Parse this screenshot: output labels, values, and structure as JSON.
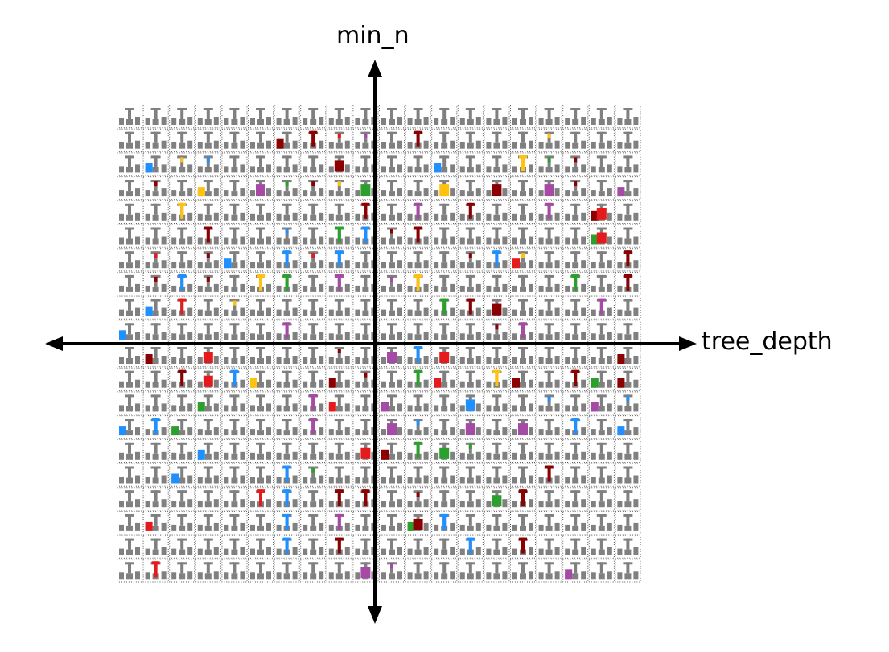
{
  "axes": {
    "x_label": "tree_depth",
    "y_label": "min_n"
  },
  "grid": {
    "rows": 20,
    "cols": 20
  },
  "colors": {
    "base": "#808080",
    "border": "#555555",
    "red": "#e41a1c",
    "darkred": "#8b0000",
    "blue": "#1e90ff",
    "green": "#2ca02c",
    "yellow": "#ffc20e",
    "purple": "#a54aa5",
    "axis": "#000000"
  },
  "highlights": [
    [
      1,
      7,
      "darkred",
      "tall"
    ],
    [
      1,
      6,
      "darkred",
      "block"
    ],
    [
      1,
      8,
      "red",
      "small"
    ],
    [
      1,
      9,
      "purple",
      "small"
    ],
    [
      1,
      11,
      "darkred",
      "tall"
    ],
    [
      1,
      16,
      "yellow",
      "small"
    ],
    [
      2,
      2,
      "yellow",
      "small"
    ],
    [
      2,
      1,
      "blue",
      "block"
    ],
    [
      2,
      3,
      "blue",
      "small"
    ],
    [
      2,
      8,
      "darkred",
      "wide"
    ],
    [
      2,
      12,
      "blue",
      "block"
    ],
    [
      2,
      15,
      "yellow",
      "tall"
    ],
    [
      2,
      16,
      "green",
      "small"
    ],
    [
      2,
      17,
      "darkred",
      "small"
    ],
    [
      3,
      1,
      "darkred",
      "small"
    ],
    [
      3,
      3,
      "yellow",
      "block"
    ],
    [
      3,
      5,
      "purple",
      "wide"
    ],
    [
      3,
      6,
      "green",
      "small"
    ],
    [
      3,
      7,
      "darkred",
      "small"
    ],
    [
      3,
      8,
      "yellow",
      "small"
    ],
    [
      3,
      9,
      "green",
      "wide"
    ],
    [
      3,
      12,
      "yellow",
      "wide"
    ],
    [
      3,
      14,
      "darkred",
      "wide"
    ],
    [
      3,
      16,
      "purple",
      "wide"
    ],
    [
      3,
      17,
      "darkred",
      "small"
    ],
    [
      3,
      19,
      "purple",
      "block"
    ],
    [
      4,
      2,
      "yellow",
      "tall"
    ],
    [
      4,
      9,
      "darkred",
      "tall"
    ],
    [
      4,
      11,
      "purple",
      "tall"
    ],
    [
      4,
      13,
      "darkred",
      "tall"
    ],
    [
      4,
      16,
      "purple",
      "tall"
    ],
    [
      4,
      18,
      "darkred",
      "block"
    ],
    [
      4,
      18,
      "red",
      "wide"
    ],
    [
      5,
      3,
      "darkred",
      "tall"
    ],
    [
      5,
      6,
      "blue",
      "small"
    ],
    [
      5,
      8,
      "green",
      "tall"
    ],
    [
      5,
      9,
      "blue",
      "tall"
    ],
    [
      5,
      10,
      "darkred",
      "small"
    ],
    [
      5,
      11,
      "darkred",
      "tall"
    ],
    [
      5,
      18,
      "green",
      "block"
    ],
    [
      5,
      18,
      "red",
      "wide"
    ],
    [
      6,
      1,
      "red",
      "small"
    ],
    [
      6,
      3,
      "darkred",
      "small"
    ],
    [
      6,
      4,
      "blue",
      "block"
    ],
    [
      6,
      6,
      "blue",
      "tall"
    ],
    [
      6,
      7,
      "red",
      "small"
    ],
    [
      6,
      8,
      "blue",
      "tall"
    ],
    [
      6,
      13,
      "darkred",
      "small"
    ],
    [
      6,
      14,
      "blue",
      "tall"
    ],
    [
      6,
      15,
      "red",
      "block"
    ],
    [
      6,
      15,
      "yellow",
      "small"
    ],
    [
      6,
      19,
      "darkred",
      "tall"
    ],
    [
      7,
      1,
      "darkred",
      "small"
    ],
    [
      7,
      2,
      "blue",
      "tall"
    ],
    [
      7,
      3,
      "darkred",
      "small"
    ],
    [
      7,
      5,
      "yellow",
      "tall"
    ],
    [
      7,
      6,
      "green",
      "tall"
    ],
    [
      7,
      8,
      "purple",
      "tall"
    ],
    [
      7,
      10,
      "purple",
      "small"
    ],
    [
      7,
      11,
      "yellow",
      "tall"
    ],
    [
      7,
      17,
      "green",
      "tall"
    ],
    [
      7,
      19,
      "darkred",
      "tall"
    ],
    [
      8,
      1,
      "blue",
      "block"
    ],
    [
      8,
      2,
      "red",
      "tall"
    ],
    [
      8,
      4,
      "yellow",
      "small"
    ],
    [
      8,
      12,
      "green",
      "tall"
    ],
    [
      8,
      13,
      "darkred",
      "tall"
    ],
    [
      8,
      14,
      "darkred",
      "wide"
    ],
    [
      8,
      18,
      "purple",
      "tall"
    ],
    [
      9,
      0,
      "blue",
      "block"
    ],
    [
      9,
      6,
      "purple",
      "tall"
    ],
    [
      9,
      14,
      "darkred",
      "small"
    ],
    [
      9,
      15,
      "purple",
      "tall"
    ],
    [
      10,
      1,
      "darkred",
      "block"
    ],
    [
      10,
      3,
      "red",
      "wide"
    ],
    [
      10,
      8,
      "darkred",
      "small"
    ],
    [
      10,
      10,
      "purple",
      "wide"
    ],
    [
      10,
      11,
      "blue",
      "tall"
    ],
    [
      10,
      12,
      "red",
      "wide"
    ],
    [
      10,
      19,
      "darkred",
      "block"
    ],
    [
      11,
      2,
      "darkred",
      "tall"
    ],
    [
      11,
      4,
      "blue",
      "tall"
    ],
    [
      11,
      3,
      "red",
      "wide"
    ],
    [
      11,
      5,
      "yellow",
      "block"
    ],
    [
      11,
      8,
      "darkred",
      "block"
    ],
    [
      11,
      9,
      "darkred",
      "small"
    ],
    [
      11,
      11,
      "green",
      "tall"
    ],
    [
      11,
      12,
      "red",
      "block"
    ],
    [
      11,
      14,
      "yellow",
      "tall"
    ],
    [
      11,
      15,
      "darkred",
      "block"
    ],
    [
      11,
      17,
      "darkred",
      "tall"
    ],
    [
      11,
      18,
      "green",
      "block"
    ],
    [
      11,
      19,
      "darkred",
      "block"
    ],
    [
      12,
      3,
      "green",
      "block"
    ],
    [
      12,
      7,
      "purple",
      "tall"
    ],
    [
      12,
      8,
      "red",
      "block"
    ],
    [
      12,
      10,
      "purple",
      "block"
    ],
    [
      12,
      13,
      "blue",
      "wide"
    ],
    [
      12,
      16,
      "blue",
      "small"
    ],
    [
      12,
      18,
      "purple",
      "block"
    ],
    [
      12,
      19,
      "blue",
      "small"
    ],
    [
      13,
      0,
      "blue",
      "block"
    ],
    [
      13,
      1,
      "blue",
      "tall"
    ],
    [
      13,
      2,
      "green",
      "block"
    ],
    [
      13,
      7,
      "purple",
      "tall"
    ],
    [
      13,
      10,
      "purple",
      "wide"
    ],
    [
      13,
      11,
      "blue",
      "small"
    ],
    [
      13,
      13,
      "purple",
      "wide"
    ],
    [
      13,
      15,
      "purple",
      "wide"
    ],
    [
      13,
      17,
      "blue",
      "tall"
    ],
    [
      13,
      19,
      "blue",
      "block"
    ],
    [
      14,
      3,
      "blue",
      "block"
    ],
    [
      14,
      9,
      "red",
      "wide"
    ],
    [
      14,
      10,
      "darkred",
      "block"
    ],
    [
      14,
      11,
      "green",
      "tall"
    ],
    [
      14,
      12,
      "green",
      "wide"
    ],
    [
      14,
      13,
      "green",
      "small"
    ],
    [
      15,
      2,
      "blue",
      "block"
    ],
    [
      15,
      6,
      "blue",
      "tall"
    ],
    [
      15,
      7,
      "green",
      "small"
    ],
    [
      15,
      16,
      "darkred",
      "tall"
    ],
    [
      16,
      5,
      "red",
      "tall"
    ],
    [
      16,
      6,
      "blue",
      "tall"
    ],
    [
      16,
      8,
      "darkred",
      "tall"
    ],
    [
      16,
      9,
      "darkred",
      "tall"
    ],
    [
      16,
      11,
      "darkred",
      "small"
    ],
    [
      16,
      14,
      "green",
      "wide"
    ],
    [
      16,
      15,
      "darkred",
      "tall"
    ],
    [
      17,
      1,
      "red",
      "block"
    ],
    [
      17,
      6,
      "blue",
      "tall"
    ],
    [
      17,
      8,
      "purple",
      "tall"
    ],
    [
      17,
      11,
      "green",
      "block"
    ],
    [
      17,
      11,
      "darkred",
      "wide"
    ],
    [
      17,
      12,
      "blue",
      "tall"
    ],
    [
      18,
      6,
      "blue",
      "tall"
    ],
    [
      18,
      8,
      "darkred",
      "tall"
    ],
    [
      18,
      13,
      "blue",
      "tall"
    ],
    [
      18,
      15,
      "darkred",
      "tall"
    ],
    [
      19,
      1,
      "red",
      "tall"
    ],
    [
      19,
      9,
      "purple",
      "wide"
    ],
    [
      19,
      10,
      "purple",
      "small"
    ],
    [
      19,
      17,
      "purple",
      "block"
    ]
  ]
}
